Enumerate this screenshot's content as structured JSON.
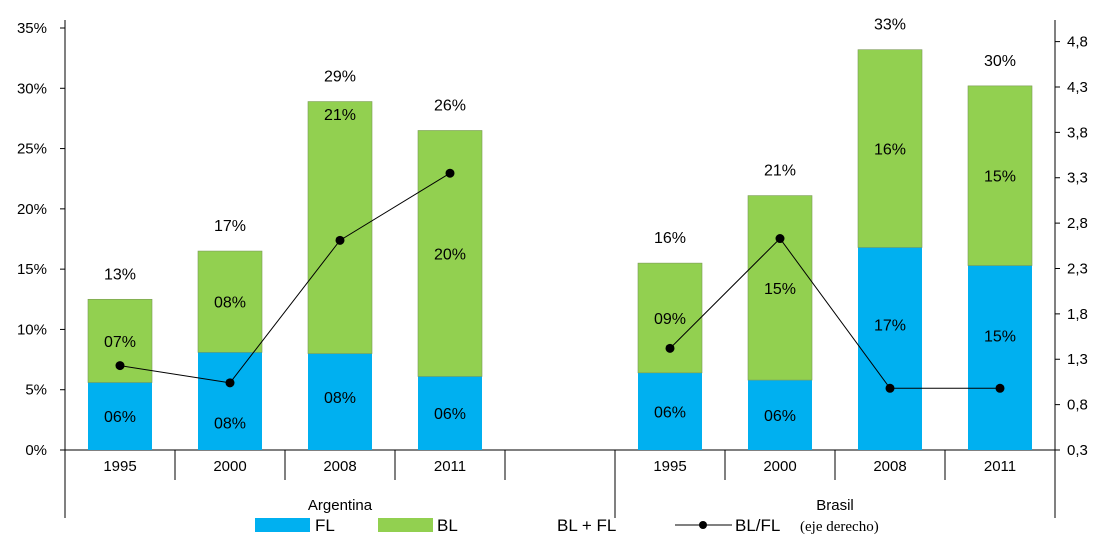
{
  "chart_data": {
    "type": "bar",
    "stacked": true,
    "groups": [
      {
        "name": "Argentina",
        "categories": [
          "1995",
          "2000",
          "2008",
          "2011"
        ]
      },
      {
        "name": "Brasil",
        "categories": [
          "1995",
          "2000",
          "2008",
          "2011"
        ]
      }
    ],
    "series": [
      {
        "name": "FL",
        "color": "#00b0f0",
        "values": [
          5.6,
          8.1,
          8.0,
          6.1,
          6.4,
          5.8,
          16.8,
          15.3
        ],
        "labels": [
          "06%",
          "08%",
          "08%",
          "06%",
          "06%",
          "06%",
          "17%",
          "15%"
        ]
      },
      {
        "name": "BL",
        "color": "#92d050",
        "values": [
          6.9,
          8.4,
          20.9,
          20.4,
          9.1,
          15.3,
          16.4,
          14.9
        ],
        "labels": [
          "07%",
          "08%",
          "21%",
          "20%",
          "09%",
          "15%",
          "16%",
          "15%"
        ]
      }
    ],
    "totals": {
      "name": "BL + FL",
      "values": [
        12.5,
        16.5,
        28.9,
        26.5,
        15.5,
        21.1,
        33.2,
        30.2
      ],
      "labels": [
        "13%",
        "17%",
        "29%",
        "26%",
        "16%",
        "21%",
        "33%",
        "30%"
      ]
    },
    "ratio": {
      "name": "BL/FL",
      "axis": "right",
      "values": [
        1.23,
        1.04,
        2.61,
        3.35,
        1.42,
        2.63,
        0.98,
        0.98
      ]
    },
    "ylim": [
      0,
      35
    ],
    "y_ticks": [
      "0%",
      "5%",
      "10%",
      "15%",
      "20%",
      "25%",
      "30%",
      "35%"
    ],
    "y2lim": [
      0.3,
      5.0
    ],
    "y2_ticks": [
      "0,3",
      "0,8",
      "1,3",
      "1,8",
      "2,3",
      "2,8",
      "3,3",
      "3,8",
      "4,3",
      "4,8"
    ],
    "legend": {
      "position": "bottom",
      "items": [
        "FL",
        "BL",
        "BL + FL",
        "BL/FL"
      ],
      "note": "(eje derecho)"
    },
    "grid": false
  }
}
